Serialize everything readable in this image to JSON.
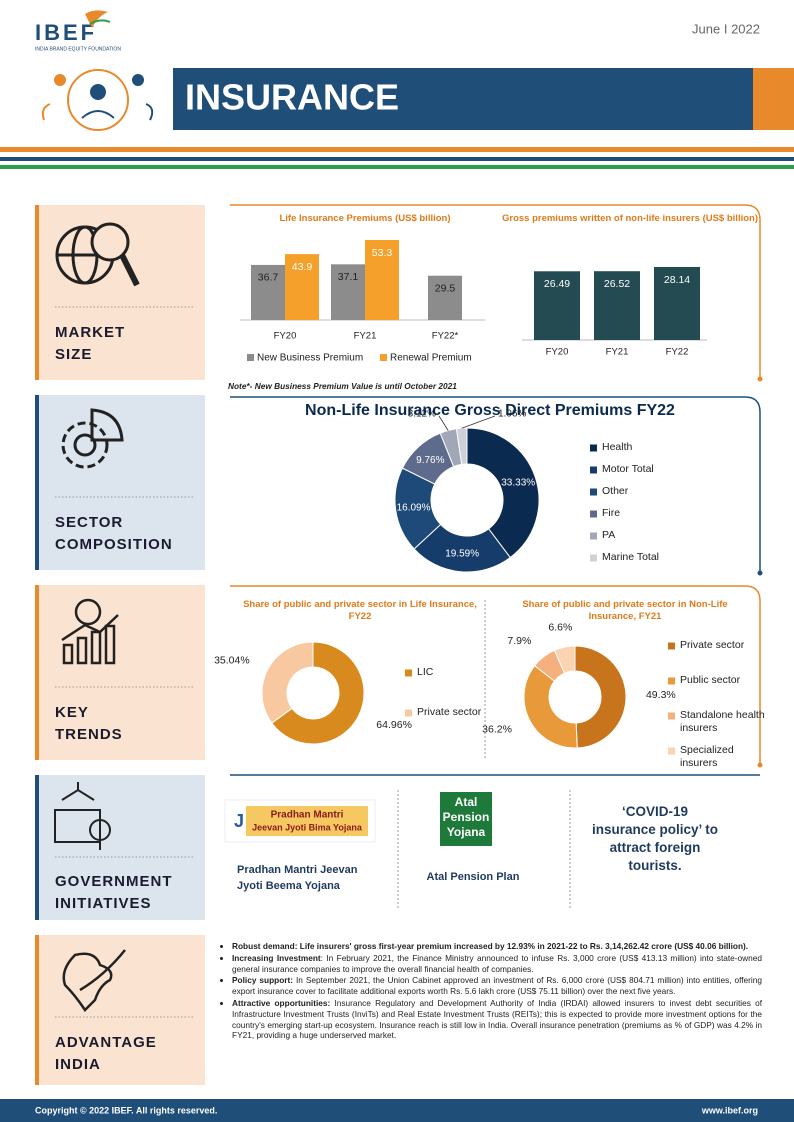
{
  "header": {
    "logo": "IBEF",
    "logo_sub": "INDIA BRAND EQUITY FOUNDATION",
    "date": "June I 2022",
    "title": "INSURANCE"
  },
  "sections": [
    {
      "label": [
        "MARKET",
        "SIZE"
      ]
    },
    {
      "label": [
        "SECTOR",
        "COMPOSITION"
      ]
    },
    {
      "label": [
        "KEY",
        "TRENDS"
      ]
    },
    {
      "label": [
        "GOVERNMENT",
        "INITIATIVES"
      ]
    },
    {
      "label": [
        "ADVANTAGE",
        "INDIA"
      ]
    }
  ],
  "chart_data": [
    {
      "type": "bar",
      "title": "Life Insurance Premiums (US$ billion)",
      "categories": [
        "FY20",
        "FY21",
        "FY22*"
      ],
      "series": [
        {
          "name": "New Business Premium",
          "color": "#8c8c8c",
          "values": [
            36.7,
            37.1,
            29.5
          ]
        },
        {
          "name": "Renewal Premium",
          "color": "#f5a02a",
          "values": [
            43.9,
            53.3,
            null
          ]
        }
      ],
      "legend": "bottom",
      "note": "Note*- New Business Premium Value is until October 2021"
    },
    {
      "type": "bar",
      "title": "Gross premiums written of non-life insurers (US$ billion)",
      "categories": [
        "FY20",
        "FY21",
        "FY22"
      ],
      "values": [
        26.49,
        26.52,
        28.14
      ],
      "color": "#244a52"
    },
    {
      "type": "donut",
      "title": "Non-Life Insurance Gross Direct Premiums FY22",
      "categories": [
        "Health",
        "Motor Total",
        "Other",
        "Fire",
        "PA",
        "Marine Total"
      ],
      "values": [
        33.33,
        19.59,
        16.09,
        9.76,
        3.12,
        1.96
      ],
      "value_labels": [
        "33.33%",
        "19.59%",
        "16.09%",
        "9.76%",
        "3.12%",
        "1.96%"
      ],
      "colors": [
        "#0b2a4f",
        "#163c6b",
        "#1d4a78",
        "#5f6b8c",
        "#a2a7b8",
        "#cfd1d8"
      ],
      "legend": "right"
    },
    {
      "type": "donut",
      "title": "Share of public and private sector in Life Insurance, FY22",
      "categories": [
        "LIC",
        "Private sector"
      ],
      "values": [
        64.96,
        35.04
      ],
      "value_labels": [
        "64.96%",
        "35.04%"
      ],
      "colors": [
        "#d98a1e",
        "#f8c9a0"
      ],
      "legend": "right"
    },
    {
      "type": "donut",
      "title": "Share of public and private sector in Non-Life Insurance, FY21",
      "categories": [
        "Private sector",
        "Public sector",
        "Standalone health insurers",
        "Specialized insurers"
      ],
      "values": [
        49.3,
        36.2,
        7.9,
        6.6
      ],
      "value_labels": [
        "49.3%",
        "36.2%",
        "7.9%",
        "6.6%"
      ],
      "colors": [
        "#c8741c",
        "#e89a3a",
        "#f5b07d",
        "#fbd3b0"
      ],
      "legend": "right"
    }
  ],
  "government": {
    "items": [
      {
        "logo": [
          "Pradhan Mantri",
          "Jeevan Jyoti Bima Yojana"
        ],
        "caption": "Pradhan Mantri Jeevan Jyoti Beema Yojana"
      },
      {
        "logo": [
          "Atal",
          "Pension",
          "Yojana"
        ],
        "caption": "Atal Pension Plan"
      }
    ],
    "quote": "‘COVID-19 insurance policy’ to attract foreign tourists."
  },
  "advantage": [
    {
      "lead": "Robust demand: Life insurers' gross first-year premium increased by 12.93% in 2021-22 to Rs. 3,14,262.42 crore (US$ 40.06 billion)."
    },
    {
      "lead": "Increasing Investment",
      "text": ": In February 2021, the Finance Ministry announced to infuse Rs. 3,000 crore (US$ 413.13 million) into state-owned general insurance companies to improve the overall financial health of companies."
    },
    {
      "lead": "Policy support:",
      "text": " In September 2021, the Union Cabinet approved an investment of Rs. 6,000 crore (US$ 804.71 million) into entities, offering export insurance cover to facilitate additional exports worth Rs. 5.6 lakh crore (US$ 75.11 billion) over the next five years."
    },
    {
      "lead": "Attractive opportunities:",
      "text": " Insurance Regulatory and Development Authority of India (IRDAI) allowed insurers to invest debt securities of Infrastructure Investment Trusts (InviTs) and Real Estate Investment Trusts (REITs); this is expected to provide more investment options for the country's emerging start-up ecosystem. Insurance reach is still low in India. Overall insurance penetration (premiums as % of GDP) was 4.2% in FY21, providing a huge underserved market."
    }
  ],
  "footer": {
    "copyright": "Copyright © 2022 IBEF. All rights reserved.",
    "site": "www.ibef.org"
  }
}
